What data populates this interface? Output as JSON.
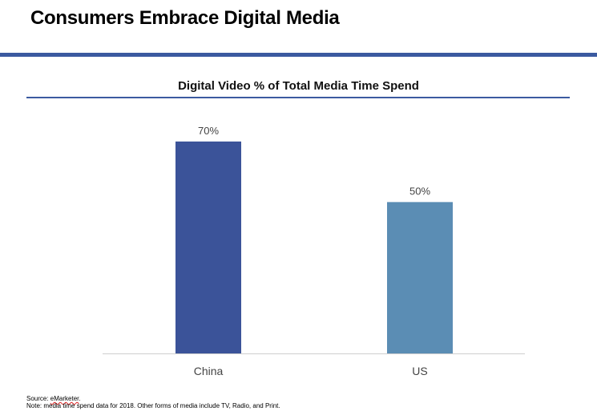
{
  "slide": {
    "title": "Consumers Embrace Digital Media"
  },
  "chart_data": {
    "type": "bar",
    "title": "Digital Video % of Total Media Time Spend",
    "categories": [
      "China",
      "US"
    ],
    "values": [
      70,
      50
    ],
    "value_labels": [
      "70%",
      "50%"
    ],
    "colors": [
      "#3b5399",
      "#5b8db4"
    ],
    "ylim": [
      0,
      100
    ],
    "xlabel": "",
    "ylabel": "",
    "grid": false,
    "legend": "none"
  },
  "footnotes": {
    "source_prefix": "Source: ",
    "source_name": "eMarketer",
    "source_suffix": ".",
    "note": "Note: media time spend data for 2018. Other forms of media include TV, Radio, and Print."
  }
}
